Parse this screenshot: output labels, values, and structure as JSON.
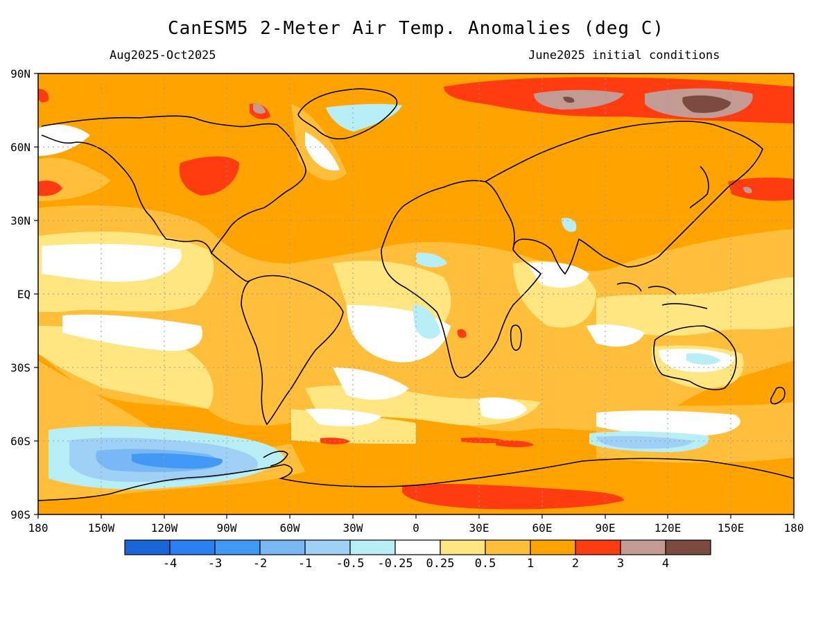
{
  "title": "CanESM5 2-Meter Air Temp. Anomalies (deg C)",
  "period": "Aug2025-Oct2025",
  "initial_conditions": "June2025 initial conditions",
  "lat_labels": [
    "90N",
    "60N",
    "30N",
    "EQ",
    "30S",
    "60S",
    "90S"
  ],
  "lon_labels": [
    "180",
    "150W",
    "120W",
    "90W",
    "60W",
    "30W",
    "0",
    "30E",
    "60E",
    "90E",
    "120E",
    "150E",
    "180"
  ],
  "colorbar": {
    "colors": [
      "#1a66d9",
      "#2b7ff0",
      "#4199f5",
      "#79b8f5",
      "#9fd0f5",
      "#b8eef5",
      "#ffffff",
      "#ffe680",
      "#ffbf3a",
      "#ffa300",
      "#ff3b10",
      "#c49b92",
      "#7a4b3e"
    ],
    "labels": [
      "-4",
      "-3",
      "-2",
      "-1",
      "-0.5",
      "-0.25",
      "0.25",
      "0.5",
      "1",
      "2",
      "3",
      "4"
    ]
  }
}
